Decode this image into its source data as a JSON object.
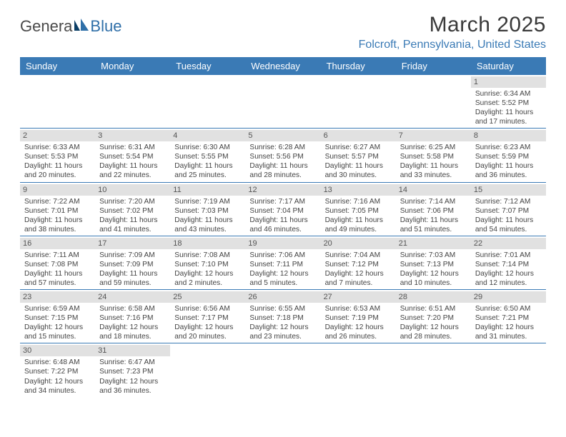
{
  "logo": {
    "part1": "Genera",
    "part2": "Blue"
  },
  "title": "March 2025",
  "location": "Folcroft, Pennsylvania, United States",
  "colors": {
    "header_bg": "#3a7ab5",
    "header_text": "#ffffff",
    "daybar_bg": "#e1e1e1",
    "row_border": "#3a7ab5",
    "location_text": "#3a7ab5"
  },
  "weekdays": [
    "Sunday",
    "Monday",
    "Tuesday",
    "Wednesday",
    "Thursday",
    "Friday",
    "Saturday"
  ],
  "weeks": [
    [
      null,
      null,
      null,
      null,
      null,
      null,
      {
        "n": "1",
        "sr": "Sunrise: 6:34 AM",
        "ss": "Sunset: 5:52 PM",
        "d1": "Daylight: 11 hours",
        "d2": "and 17 minutes."
      }
    ],
    [
      {
        "n": "2",
        "sr": "Sunrise: 6:33 AM",
        "ss": "Sunset: 5:53 PM",
        "d1": "Daylight: 11 hours",
        "d2": "and 20 minutes."
      },
      {
        "n": "3",
        "sr": "Sunrise: 6:31 AM",
        "ss": "Sunset: 5:54 PM",
        "d1": "Daylight: 11 hours",
        "d2": "and 22 minutes."
      },
      {
        "n": "4",
        "sr": "Sunrise: 6:30 AM",
        "ss": "Sunset: 5:55 PM",
        "d1": "Daylight: 11 hours",
        "d2": "and 25 minutes."
      },
      {
        "n": "5",
        "sr": "Sunrise: 6:28 AM",
        "ss": "Sunset: 5:56 PM",
        "d1": "Daylight: 11 hours",
        "d2": "and 28 minutes."
      },
      {
        "n": "6",
        "sr": "Sunrise: 6:27 AM",
        "ss": "Sunset: 5:57 PM",
        "d1": "Daylight: 11 hours",
        "d2": "and 30 minutes."
      },
      {
        "n": "7",
        "sr": "Sunrise: 6:25 AM",
        "ss": "Sunset: 5:58 PM",
        "d1": "Daylight: 11 hours",
        "d2": "and 33 minutes."
      },
      {
        "n": "8",
        "sr": "Sunrise: 6:23 AM",
        "ss": "Sunset: 5:59 PM",
        "d1": "Daylight: 11 hours",
        "d2": "and 36 minutes."
      }
    ],
    [
      {
        "n": "9",
        "sr": "Sunrise: 7:22 AM",
        "ss": "Sunset: 7:01 PM",
        "d1": "Daylight: 11 hours",
        "d2": "and 38 minutes."
      },
      {
        "n": "10",
        "sr": "Sunrise: 7:20 AM",
        "ss": "Sunset: 7:02 PM",
        "d1": "Daylight: 11 hours",
        "d2": "and 41 minutes."
      },
      {
        "n": "11",
        "sr": "Sunrise: 7:19 AM",
        "ss": "Sunset: 7:03 PM",
        "d1": "Daylight: 11 hours",
        "d2": "and 43 minutes."
      },
      {
        "n": "12",
        "sr": "Sunrise: 7:17 AM",
        "ss": "Sunset: 7:04 PM",
        "d1": "Daylight: 11 hours",
        "d2": "and 46 minutes."
      },
      {
        "n": "13",
        "sr": "Sunrise: 7:16 AM",
        "ss": "Sunset: 7:05 PM",
        "d1": "Daylight: 11 hours",
        "d2": "and 49 minutes."
      },
      {
        "n": "14",
        "sr": "Sunrise: 7:14 AM",
        "ss": "Sunset: 7:06 PM",
        "d1": "Daylight: 11 hours",
        "d2": "and 51 minutes."
      },
      {
        "n": "15",
        "sr": "Sunrise: 7:12 AM",
        "ss": "Sunset: 7:07 PM",
        "d1": "Daylight: 11 hours",
        "d2": "and 54 minutes."
      }
    ],
    [
      {
        "n": "16",
        "sr": "Sunrise: 7:11 AM",
        "ss": "Sunset: 7:08 PM",
        "d1": "Daylight: 11 hours",
        "d2": "and 57 minutes."
      },
      {
        "n": "17",
        "sr": "Sunrise: 7:09 AM",
        "ss": "Sunset: 7:09 PM",
        "d1": "Daylight: 11 hours",
        "d2": "and 59 minutes."
      },
      {
        "n": "18",
        "sr": "Sunrise: 7:08 AM",
        "ss": "Sunset: 7:10 PM",
        "d1": "Daylight: 12 hours",
        "d2": "and 2 minutes."
      },
      {
        "n": "19",
        "sr": "Sunrise: 7:06 AM",
        "ss": "Sunset: 7:11 PM",
        "d1": "Daylight: 12 hours",
        "d2": "and 5 minutes."
      },
      {
        "n": "20",
        "sr": "Sunrise: 7:04 AM",
        "ss": "Sunset: 7:12 PM",
        "d1": "Daylight: 12 hours",
        "d2": "and 7 minutes."
      },
      {
        "n": "21",
        "sr": "Sunrise: 7:03 AM",
        "ss": "Sunset: 7:13 PM",
        "d1": "Daylight: 12 hours",
        "d2": "and 10 minutes."
      },
      {
        "n": "22",
        "sr": "Sunrise: 7:01 AM",
        "ss": "Sunset: 7:14 PM",
        "d1": "Daylight: 12 hours",
        "d2": "and 12 minutes."
      }
    ],
    [
      {
        "n": "23",
        "sr": "Sunrise: 6:59 AM",
        "ss": "Sunset: 7:15 PM",
        "d1": "Daylight: 12 hours",
        "d2": "and 15 minutes."
      },
      {
        "n": "24",
        "sr": "Sunrise: 6:58 AM",
        "ss": "Sunset: 7:16 PM",
        "d1": "Daylight: 12 hours",
        "d2": "and 18 minutes."
      },
      {
        "n": "25",
        "sr": "Sunrise: 6:56 AM",
        "ss": "Sunset: 7:17 PM",
        "d1": "Daylight: 12 hours",
        "d2": "and 20 minutes."
      },
      {
        "n": "26",
        "sr": "Sunrise: 6:55 AM",
        "ss": "Sunset: 7:18 PM",
        "d1": "Daylight: 12 hours",
        "d2": "and 23 minutes."
      },
      {
        "n": "27",
        "sr": "Sunrise: 6:53 AM",
        "ss": "Sunset: 7:19 PM",
        "d1": "Daylight: 12 hours",
        "d2": "and 26 minutes."
      },
      {
        "n": "28",
        "sr": "Sunrise: 6:51 AM",
        "ss": "Sunset: 7:20 PM",
        "d1": "Daylight: 12 hours",
        "d2": "and 28 minutes."
      },
      {
        "n": "29",
        "sr": "Sunrise: 6:50 AM",
        "ss": "Sunset: 7:21 PM",
        "d1": "Daylight: 12 hours",
        "d2": "and 31 minutes."
      }
    ],
    [
      {
        "n": "30",
        "sr": "Sunrise: 6:48 AM",
        "ss": "Sunset: 7:22 PM",
        "d1": "Daylight: 12 hours",
        "d2": "and 34 minutes."
      },
      {
        "n": "31",
        "sr": "Sunrise: 6:47 AM",
        "ss": "Sunset: 7:23 PM",
        "d1": "Daylight: 12 hours",
        "d2": "and 36 minutes."
      },
      null,
      null,
      null,
      null,
      null
    ]
  ]
}
